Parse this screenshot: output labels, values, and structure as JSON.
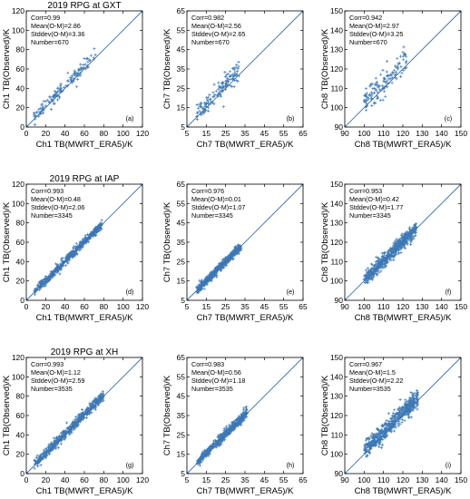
{
  "colors": {
    "data": "#3f7ab5",
    "fit": "#3c6fb0",
    "axis": "#000000"
  },
  "chart_data": [
    {
      "id": "a",
      "type": "scatter",
      "title": "2019 RPG at GXT",
      "xlabel": "Ch1 TB(MWRT_ERA5)/K",
      "ylabel": "Ch1 TB(Observed)/K",
      "xlim": [
        0,
        120
      ],
      "ylim": [
        0,
        120
      ],
      "xticks": [
        0,
        20,
        40,
        60,
        80,
        100,
        120
      ],
      "yticks": [
        0,
        20,
        40,
        60,
        80,
        100,
        120
      ],
      "tick_labels": [
        "0",
        "20",
        "40",
        "60",
        "80",
        "100",
        "120"
      ],
      "stats": [
        "Corr=0.99",
        "Mean(O-M)=2.86",
        "Stddev(O-M)=3.36",
        "Number=670"
      ],
      "panel_label": "(a)",
      "x_range": [
        8,
        72
      ],
      "density": "medium",
      "offset": 2.86,
      "spread": 3.36,
      "fit_line": "1:1"
    },
    {
      "id": "b",
      "type": "scatter",
      "title": "",
      "xlabel": "Ch7 TB(MWRT_ERA5)/K",
      "ylabel": "Ch7 TB(Observed)/K",
      "xlim": [
        5,
        65
      ],
      "ylim": [
        5,
        65
      ],
      "xticks": [
        5,
        15,
        25,
        35,
        45,
        55,
        65
      ],
      "yticks": [
        5,
        15,
        25,
        35,
        45,
        55,
        65
      ],
      "tick_labels": [
        "5",
        "15",
        "25",
        "35",
        "45",
        "55",
        "65"
      ],
      "stats": [
        "Corr=0.982",
        "Mean(O-M)=2.56",
        "Stddev(O-M)=2.65",
        "Number=670"
      ],
      "panel_label": "(b)",
      "x_range": [
        10,
        32
      ],
      "density": "medium",
      "offset": 2.56,
      "spread": 2.65,
      "fit_line": "1:1"
    },
    {
      "id": "c",
      "type": "scatter",
      "title": "",
      "xlabel": "Ch8 TB(MWRT_ERA5)/K",
      "ylabel": "Ch8 TB(Observed)/K",
      "xlim": [
        90,
        150
      ],
      "ylim": [
        90,
        150
      ],
      "xticks": [
        90,
        100,
        110,
        120,
        130,
        140,
        150
      ],
      "yticks": [
        90,
        100,
        110,
        120,
        130,
        140,
        150
      ],
      "tick_labels": [
        "90",
        "100",
        "110",
        "120",
        "130",
        "140",
        "150"
      ],
      "stats": [
        "Corr=0.942",
        "Mean(O-M)=2.97",
        "Stddev(O-M)=3.25",
        "Number=670"
      ],
      "panel_label": "(c)",
      "x_range": [
        100,
        122
      ],
      "density": "medium",
      "offset": 2.97,
      "spread": 3.25,
      "fit_line": "1:1"
    },
    {
      "id": "d",
      "type": "scatter",
      "title": "2019 RPG at IAP",
      "xlabel": "Ch1 TB(MWRT_ERA5)/K",
      "ylabel": "Ch1 TB(Observed)/K",
      "xlim": [
        0,
        120
      ],
      "ylim": [
        0,
        120
      ],
      "xticks": [
        0,
        20,
        40,
        60,
        80,
        100,
        120
      ],
      "yticks": [
        0,
        20,
        40,
        60,
        80,
        100,
        120
      ],
      "tick_labels": [
        "0",
        "20",
        "40",
        "60",
        "80",
        "100",
        "120"
      ],
      "stats": [
        "Corr=0.993",
        "Mean(O-M)=0.48",
        "Stddev(O-M)=2.06",
        "Number=3345"
      ],
      "panel_label": "(d)",
      "x_range": [
        8,
        78
      ],
      "density": "high",
      "offset": 0.48,
      "spread": 2.06,
      "fit_line": "1:1"
    },
    {
      "id": "e",
      "type": "scatter",
      "title": "",
      "xlabel": "Ch7 TB(MWRT_ERA5)/K",
      "ylabel": "Ch7 TB(Observed)/K",
      "xlim": [
        5,
        65
      ],
      "ylim": [
        5,
        65
      ],
      "xticks": [
        5,
        15,
        25,
        35,
        45,
        55,
        65
      ],
      "yticks": [
        5,
        15,
        25,
        35,
        45,
        55,
        65
      ],
      "tick_labels": [
        "5",
        "15",
        "25",
        "35",
        "45",
        "55",
        "65"
      ],
      "stats": [
        "Corr=0.976",
        "Mean(O-M)=0.01",
        "Stddev(O-M)=1.07",
        "Number=3345"
      ],
      "panel_label": "(e)",
      "x_range": [
        10,
        33
      ],
      "density": "high",
      "offset": 0.01,
      "spread": 1.07,
      "fit_line": "1:1"
    },
    {
      "id": "f",
      "type": "scatter",
      "title": "",
      "xlabel": "Ch8 TB(MWRT_ERA5)/K",
      "ylabel": "Ch8 TB(Observed)/K",
      "xlim": [
        90,
        150
      ],
      "ylim": [
        90,
        150
      ],
      "xticks": [
        90,
        100,
        110,
        120,
        130,
        140,
        150
      ],
      "yticks": [
        90,
        100,
        110,
        120,
        130,
        140,
        150
      ],
      "tick_labels": [
        "90",
        "100",
        "110",
        "120",
        "130",
        "140",
        "150"
      ],
      "stats": [
        "Corr=0.953",
        "Mean(O-M)=0.42",
        "Stddev(O-M)=1.77",
        "Number=3345"
      ],
      "panel_label": "(f)",
      "x_range": [
        100,
        127
      ],
      "density": "high",
      "offset": 0.42,
      "spread": 1.77,
      "fit_line": "1:1"
    },
    {
      "id": "g",
      "type": "scatter",
      "title": "2019 RPG at XH",
      "xlabel": "Ch1 TB(MWRT_ERA5)/K",
      "ylabel": "Ch1 TB(Observed)/K",
      "xlim": [
        0,
        120
      ],
      "ylim": [
        0,
        120
      ],
      "xticks": [
        0,
        20,
        40,
        60,
        80,
        100,
        120
      ],
      "yticks": [
        0,
        20,
        40,
        60,
        80,
        100,
        120
      ],
      "tick_labels": [
        "0",
        "20",
        "40",
        "60",
        "80",
        "100",
        "120"
      ],
      "stats": [
        "Corr=0.993",
        "Mean(O-M)=1.12",
        "Stddev(O-M)=2.59",
        "Number=3535"
      ],
      "panel_label": "(g)",
      "x_range": [
        8,
        80
      ],
      "density": "high",
      "offset": 1.12,
      "spread": 2.59,
      "fit_line": "1:1"
    },
    {
      "id": "h",
      "type": "scatter",
      "title": "",
      "xlabel": "Ch7 TB(MWRT_ERA5)/K",
      "ylabel": "Ch7 TB(Observed)/K",
      "xlim": [
        5,
        65
      ],
      "ylim": [
        5,
        65
      ],
      "xticks": [
        5,
        15,
        25,
        35,
        45,
        55,
        65
      ],
      "yticks": [
        5,
        15,
        25,
        35,
        45,
        55,
        65
      ],
      "tick_labels": [
        "5",
        "15",
        "25",
        "35",
        "45",
        "55",
        "65"
      ],
      "stats": [
        "Corr=0.983",
        "Mean(O-M)=0.56",
        "Stddev(O-M)=1.18",
        "Number=3535"
      ],
      "panel_label": "(h)",
      "x_range": [
        10,
        36
      ],
      "density": "high",
      "offset": 0.56,
      "spread": 1.18,
      "fit_line": "1:1"
    },
    {
      "id": "i",
      "type": "scatter",
      "title": "",
      "xlabel": "Ch8 TB(MWRT_ERA5)/K",
      "ylabel": "Ch8 TB(Observed)/K",
      "xlim": [
        90,
        150
      ],
      "ylim": [
        90,
        150
      ],
      "xticks": [
        90,
        100,
        110,
        120,
        130,
        140,
        150
      ],
      "yticks": [
        90,
        100,
        110,
        120,
        130,
        140,
        150
      ],
      "tick_labels": [
        "90",
        "100",
        "110",
        "120",
        "130",
        "140",
        "150"
      ],
      "stats": [
        "Corr=0.967",
        "Mean(O-M)=1.5",
        "Stddev(O-M)=2.22",
        "Number=3535"
      ],
      "panel_label": "(i)",
      "x_range": [
        100,
        128
      ],
      "density": "high",
      "offset": 1.5,
      "spread": 2.22,
      "fit_line": "1:1"
    }
  ]
}
